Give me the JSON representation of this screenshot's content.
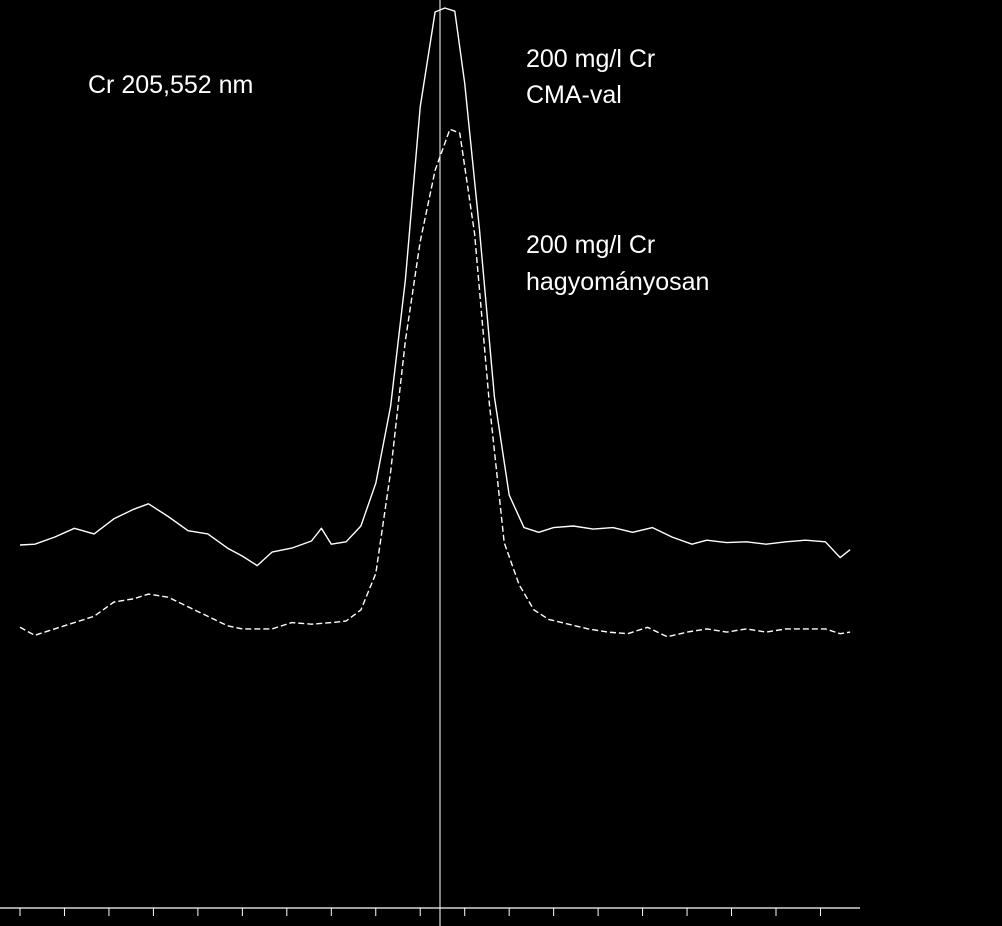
{
  "chart_data": {
    "type": "line",
    "title": "",
    "xlabel": "",
    "ylabel": "",
    "grid": false,
    "background": "#000000",
    "line_color": "#ffffff",
    "annotations": {
      "line": "Cr 205,552 nm",
      "series_1_line1": "200 mg/l Cr",
      "series_1_line2": "CMA-val",
      "series_2_line1": "200 mg/l Cr",
      "series_2_line2": "hagyományosan"
    },
    "xlim": [
      -42.5,
      42.5
    ],
    "ylim": [
      0,
      100
    ],
    "x_ticks": [
      -42.5,
      -38,
      -33.5,
      -29,
      -24.5,
      -20,
      -15.5,
      -11,
      -6.5,
      -2,
      2.5,
      7,
      11.5,
      16,
      20.5,
      25,
      29.5,
      34,
      38.5
    ],
    "center_marker_x": 0,
    "series": [
      {
        "style": "solid",
        "points": [
          [
            -42.5,
            32.2
          ],
          [
            -41,
            32.3
          ],
          [
            -39,
            33.2
          ],
          [
            -37,
            34.3
          ],
          [
            -35,
            33.6
          ],
          [
            -33,
            35.5
          ],
          [
            -31,
            36.7
          ],
          [
            -29.5,
            37.4
          ],
          [
            -27.5,
            35.8
          ],
          [
            -25.5,
            34.0
          ],
          [
            -23.5,
            33.6
          ],
          [
            -21.5,
            31.8
          ],
          [
            -20,
            30.8
          ],
          [
            -18.5,
            29.6
          ],
          [
            -17,
            31.3
          ],
          [
            -15,
            31.8
          ],
          [
            -13,
            32.7
          ],
          [
            -12,
            34.3
          ],
          [
            -11,
            32.3
          ],
          [
            -9.5,
            32.6
          ],
          [
            -8,
            34.6
          ],
          [
            -6.5,
            40.0
          ],
          [
            -5,
            49.7
          ],
          [
            -3.5,
            65.7
          ],
          [
            -2,
            87.5
          ],
          [
            -0.5,
            99.5
          ],
          [
            0.5,
            100.0
          ],
          [
            1.5,
            99.6
          ],
          [
            2.5,
            90.5
          ],
          [
            4,
            72.0
          ],
          [
            5.5,
            50.9
          ],
          [
            7,
            38.5
          ],
          [
            8.5,
            34.4
          ],
          [
            10,
            33.8
          ],
          [
            11.5,
            34.4
          ],
          [
            13.5,
            34.6
          ],
          [
            15.5,
            34.2
          ],
          [
            17.5,
            34.4
          ],
          [
            19.5,
            33.8
          ],
          [
            21.5,
            34.4
          ],
          [
            23.5,
            33.2
          ],
          [
            25.5,
            32.3
          ],
          [
            27,
            32.8
          ],
          [
            29,
            32.5
          ],
          [
            31,
            32.6
          ],
          [
            33,
            32.3
          ],
          [
            35,
            32.6
          ],
          [
            37,
            32.8
          ],
          [
            39,
            32.6
          ],
          [
            40.5,
            30.6
          ],
          [
            41.5,
            31.6
          ]
        ]
      },
      {
        "style": "dashed",
        "points": [
          [
            -42.5,
            21.8
          ],
          [
            -41,
            20.8
          ],
          [
            -39,
            21.6
          ],
          [
            -37,
            22.4
          ],
          [
            -35,
            23.2
          ],
          [
            -33,
            25.0
          ],
          [
            -31,
            25.4
          ],
          [
            -29.5,
            26.0
          ],
          [
            -27.5,
            25.6
          ],
          [
            -25.5,
            24.4
          ],
          [
            -23.5,
            23.2
          ],
          [
            -21.5,
            22.0
          ],
          [
            -20,
            21.6
          ],
          [
            -18.5,
            21.6
          ],
          [
            -17,
            21.6
          ],
          [
            -15,
            22.4
          ],
          [
            -13,
            22.2
          ],
          [
            -11,
            22.4
          ],
          [
            -9.5,
            22.6
          ],
          [
            -8,
            24.0
          ],
          [
            -6.5,
            28.6
          ],
          [
            -5,
            41.4
          ],
          [
            -3.5,
            58.0
          ],
          [
            -2,
            70.5
          ],
          [
            -0.5,
            79.5
          ],
          [
            1,
            84.7
          ],
          [
            2,
            84.2
          ],
          [
            3.5,
            71.5
          ],
          [
            5,
            50.0
          ],
          [
            6.5,
            32.5
          ],
          [
            8,
            27.2
          ],
          [
            9.5,
            24.0
          ],
          [
            11,
            22.8
          ],
          [
            13,
            22.2
          ],
          [
            15,
            21.6
          ],
          [
            17,
            21.2
          ],
          [
            19,
            21.0
          ],
          [
            21,
            21.8
          ],
          [
            23,
            20.6
          ],
          [
            25,
            21.2
          ],
          [
            27,
            21.6
          ],
          [
            29,
            21.2
          ],
          [
            31,
            21.6
          ],
          [
            33,
            21.2
          ],
          [
            35,
            21.6
          ],
          [
            37,
            21.6
          ],
          [
            39,
            21.6
          ],
          [
            40.5,
            21.0
          ],
          [
            41.5,
            21.2
          ]
        ]
      }
    ]
  }
}
